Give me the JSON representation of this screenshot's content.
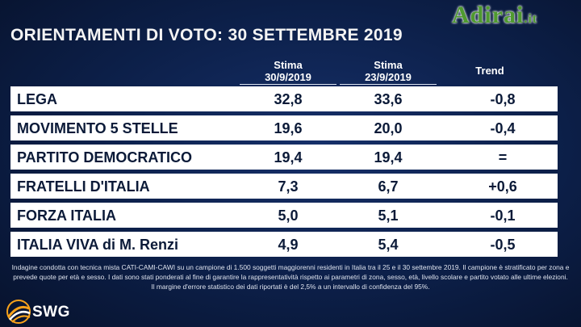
{
  "watermark": {
    "brand": "Adirai",
    "tld": ".it"
  },
  "chart_data": {
    "type": "table",
    "title": "ORIENTAMENTI DI VOTO: 30 SETTEMBRE 2019",
    "columns": [
      {
        "label": "Stima",
        "date": "30/9/2019"
      },
      {
        "label": "Stima",
        "date": "23/9/2019"
      },
      {
        "label": "Trend",
        "date": ""
      }
    ],
    "rows": [
      {
        "party": "LEGA",
        "current": "32,8",
        "previous": "33,6",
        "trend": "-0,8"
      },
      {
        "party": "MOVIMENTO 5 STELLE",
        "current": "19,6",
        "previous": "20,0",
        "trend": "-0,4"
      },
      {
        "party": "PARTITO DEMOCRATICO",
        "current": "19,4",
        "previous": "19,4",
        "trend": "="
      },
      {
        "party": "FRATELLI D'ITALIA",
        "current": "7,3",
        "previous": "6,7",
        "trend": "+0,6"
      },
      {
        "party": "FORZA ITALIA",
        "current": "5,0",
        "previous": "5,1",
        "trend": "-0,1"
      },
      {
        "party": "ITALIA VIVA di M. Renzi",
        "current": "4,9",
        "previous": "5,4",
        "trend": "-0,5"
      }
    ]
  },
  "footnote": "Indagine condotta con tecnica mista CATI-CAMI-CAWI su un campione di 1.500 soggetti maggiorenni residenti in Italia tra il 25 e il 30 settembre 2019. Il campione è stratificato per zona e prevede quote per età e sesso. I dati sono stati ponderati al fine di garantire la rappresentatività rispetto ai parametri di zona, sesso, età, livello scolare e partito votato alle ultime elezioni. Il margine d'errore statistico dei dati riportati è del 2,5% a un intervallo di confidenza del 95%.",
  "logo": {
    "text": "SWG",
    "colors": [
      "#f7a21b",
      "#ffffff"
    ]
  },
  "colors": {
    "background": "#0c1f48",
    "row_bg": "#ffffff",
    "row_text": "#0b1a38",
    "watermark": "#4f9a2f"
  }
}
